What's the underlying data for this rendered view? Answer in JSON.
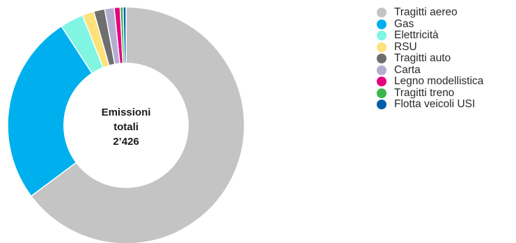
{
  "chart_data": {
    "type": "pie",
    "donut": true,
    "center_label": [
      "Emissioni",
      "totali",
      "2’426"
    ],
    "categories": [
      "Tragitti aereo",
      "Gas",
      "Elettricità",
      "RSU",
      "Tragitti auto",
      "Carta",
      "Legno modellistica",
      "Tragitti treno",
      "Flotta veicoli USI"
    ],
    "values": [
      64.8,
      26.0,
      3.2,
      1.6,
      1.5,
      1.3,
      0.8,
      0.4,
      0.4
    ],
    "colors": [
      "#c4c4c4",
      "#00b0ee",
      "#7ff5e2",
      "#fde17a",
      "#6e6e6e",
      "#b3aed0",
      "#e5007e",
      "#3ab54a",
      "#005ea8"
    ],
    "legend_position": "right",
    "start": "top",
    "direction": "clockwise"
  }
}
